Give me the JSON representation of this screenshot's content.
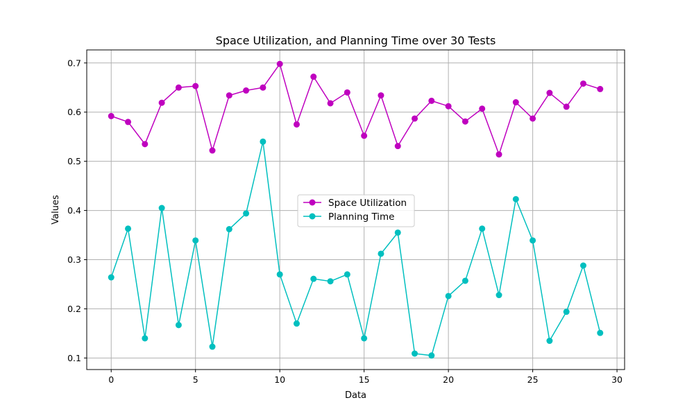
{
  "chart_data": {
    "type": "line",
    "title": "Space Utilization, and Planning Time over 30 Tests",
    "xlabel": "Data",
    "ylabel": "Values",
    "xlim": [
      -1.45,
      30.45
    ],
    "ylim": [
      0.0765,
      0.7265
    ],
    "x_ticks": [
      0,
      5,
      10,
      15,
      20,
      25,
      30
    ],
    "y_ticks": [
      0.1,
      0.2,
      0.3,
      0.4,
      0.5,
      0.6,
      0.7
    ],
    "grid": true,
    "legend_position": "center",
    "x": [
      0,
      1,
      2,
      3,
      4,
      5,
      6,
      7,
      8,
      9,
      10,
      11,
      12,
      13,
      14,
      15,
      16,
      17,
      18,
      19,
      20,
      21,
      22,
      23,
      24,
      25,
      26,
      27,
      28,
      29
    ],
    "series": [
      {
        "name": "Space Utilization",
        "color": "#bf00bf",
        "values": [
          0.592,
          0.58,
          0.535,
          0.619,
          0.65,
          0.653,
          0.522,
          0.634,
          0.644,
          0.65,
          0.698,
          0.575,
          0.672,
          0.618,
          0.64,
          0.552,
          0.634,
          0.531,
          0.587,
          0.623,
          0.612,
          0.581,
          0.607,
          0.514,
          0.62,
          0.587,
          0.639,
          0.611,
          0.658,
          0.647
        ]
      },
      {
        "name": "Planning Time",
        "color": "#00bfbf",
        "values": [
          0.264,
          0.363,
          0.14,
          0.405,
          0.167,
          0.339,
          0.123,
          0.362,
          0.394,
          0.54,
          0.27,
          0.17,
          0.261,
          0.256,
          0.27,
          0.14,
          0.312,
          0.355,
          0.109,
          0.105,
          0.226,
          0.257,
          0.363,
          0.228,
          0.423,
          0.339,
          0.135,
          0.194,
          0.288,
          0.151
        ]
      }
    ]
  }
}
